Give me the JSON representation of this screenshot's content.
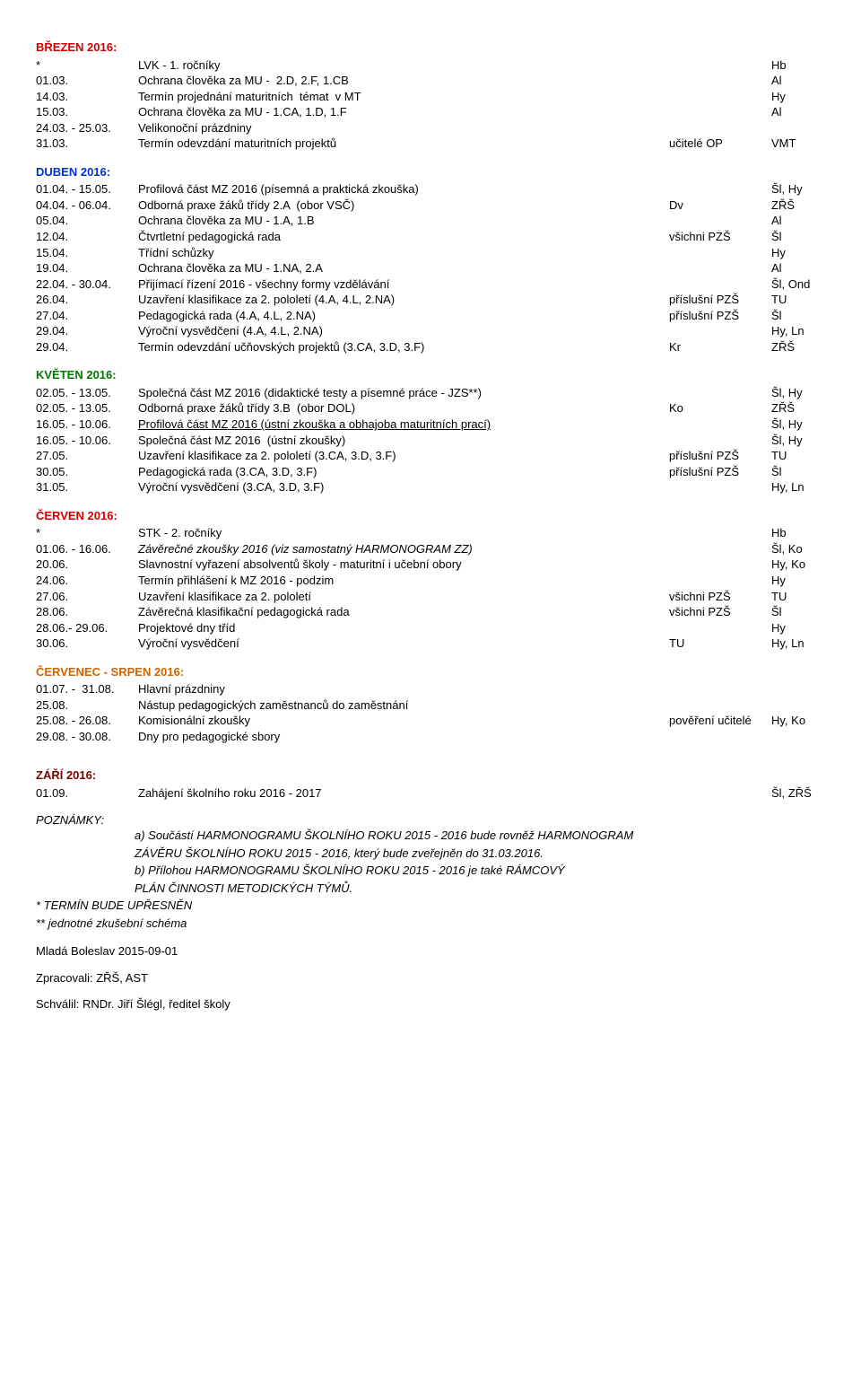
{
  "sections": [
    {
      "title": "BŘEZEN 2016:",
      "colorClass": "c-red",
      "rows": [
        {
          "date": "*",
          "text": "LVK - 1. ročníky",
          "c3": "",
          "c4": "Hb"
        },
        {
          "date": "01.03.",
          "text": "Ochrana člověka za MU -  2.D, 2.F, 1.CB",
          "c3": "",
          "c4": "Al"
        },
        {
          "date": "14.03.",
          "text": "Termín projednání maturitních  témat  v MT",
          "c3": "",
          "c4": "Hy"
        },
        {
          "date": "15.03.",
          "text": "Ochrana člověka za MU - 1.CA, 1.D, 1.F",
          "c3": "",
          "c4": "Al"
        },
        {
          "date": "24.03. - 25.03.",
          "text": "Velikonoční prázdniny",
          "c3": "",
          "c4": ""
        },
        {
          "date": "31.03.",
          "text": "Termín odevzdání maturitních projektů",
          "c3": "učitelé OP",
          "c4": "VMT"
        }
      ]
    },
    {
      "title": "DUBEN 2016:",
      "colorClass": "c-blue",
      "rows": [
        {
          "date": "01.04. - 15.05.",
          "text": "Profilová část MZ 2016 (písemná a praktická zkouška)",
          "c3": "",
          "c4": "Šl, Hy"
        },
        {
          "date": "04.04. - 06.04.",
          "text": "Odborná praxe žáků třídy 2.A  (obor VSČ)",
          "c3": "Dv",
          "c4": "ZŘŠ"
        },
        {
          "date": "05.04.",
          "text": "Ochrana člověka za MU - 1.A, 1.B",
          "c3": "",
          "c4": "Al"
        },
        {
          "date": "12.04.",
          "text": "Čtvrtletní pedagogická rada",
          "c3": "všichni PZŠ",
          "c4": "Šl"
        },
        {
          "date": "15.04.",
          "text": "Třídní schůzky",
          "c3": "",
          "c4": "Hy"
        },
        {
          "date": "19.04.",
          "text": "Ochrana člověka za MU - 1.NA, 2.A",
          "c3": "",
          "c4": "Al"
        },
        {
          "date": "22.04. - 30.04.",
          "text": "Přijímací řízení 2016 - všechny formy vzdělávání",
          "c3": "",
          "c4": "Šl, Ond"
        },
        {
          "date": "26.04.",
          "text": "Uzavření klasifikace za 2. pololetí (4.A, 4.L, 2.NA)",
          "c3": "příslušní PZŠ",
          "c4": "TU"
        },
        {
          "date": "27.04.",
          "text": "Pedagogická rada (4.A, 4.L, 2.NA)",
          "c3": "příslušní PZŠ",
          "c4": "Šl"
        },
        {
          "date": "29.04.",
          "text": "Výroční vysvědčení (4.A, 4.L, 2.NA)",
          "c3": "",
          "c4": "Hy, Ln"
        },
        {
          "date": "29.04.",
          "text": "Termín odevzdání učňovských projektů (3.CA, 3.D, 3.F)",
          "c3": "Kr",
          "c4": "ZŘŠ"
        }
      ]
    },
    {
      "title": "KVĚTEN 2016:",
      "colorClass": "c-green",
      "rows": [
        {
          "date": "02.05. - 13.05.",
          "text": "Společná část MZ 2016 (didaktické testy a písemné práce - JZS**)",
          "c3": "",
          "c4": "Šl, Hy"
        },
        {
          "date": "02.05. - 13.05.",
          "text": "Odborná praxe žáků třídy 3.B  (obor DOL)",
          "c3": "Ko",
          "c4": "ZŘŠ"
        },
        {
          "date": "16.05. - 10.06.",
          "text": "Profilová část MZ 2016 (ústní zkouška a obhajoba maturitních prací)",
          "c3": "",
          "c4": "Šl, Hy",
          "underline": true
        },
        {
          "date": "16.05. - 10.06.",
          "text": "Společná část MZ 2016  (ústní zkoušky)",
          "c3": "",
          "c4": "Šl, Hy"
        },
        {
          "date": "27.05.",
          "text": "Uzavření klasifikace za 2. pololetí (3.CA, 3.D, 3.F)",
          "c3": "příslušní PZŠ",
          "c4": "TU"
        },
        {
          "date": "30.05.",
          "text": "Pedagogická rada (3.CA, 3.D, 3.F)",
          "c3": "příslušní PZŠ",
          "c4": "Šl"
        },
        {
          "date": "31.05.",
          "text": "Výroční vysvědčení (3.CA, 3.D, 3.F)",
          "c3": "",
          "c4": "Hy, Ln"
        }
      ]
    },
    {
      "title": "ČERVEN 2016:",
      "colorClass": "c-red",
      "rows": [
        {
          "date": "*",
          "text": "STK - 2. ročníky",
          "c3": "",
          "c4": "Hb"
        },
        {
          "date": "01.06. - 16.06.",
          "text": "Závěrečné zkoušky 2016 (viz samostatný HARMONOGRAM ZZ)",
          "c3": "",
          "c4": "Šl, Ko",
          "italic": true
        },
        {
          "date": "20.06.",
          "text": "Slavnostní vyřazení absolventů školy - maturitní i učební obory",
          "c3": "",
          "c4": "Hy, Ko"
        },
        {
          "date": "24.06.",
          "text": "Termín přihlášení k MZ 2016 - podzim",
          "c3": "",
          "c4": "Hy"
        },
        {
          "date": "27.06.",
          "text": "Uzavření klasifikace za 2. pololetí",
          "c3": "všichni PZŠ",
          "c4": "TU"
        },
        {
          "date": "28.06.",
          "text": "Závěrečná klasifikační pedagogická rada",
          "c3": "všichni PZŠ",
          "c4": "Šl"
        },
        {
          "date": "28.06.- 29.06.",
          "text": "Projektové dny tříd",
          "c3": "",
          "c4": "Hy"
        },
        {
          "date": "30.06.",
          "text": "Výroční vysvědčení",
          "c3": "TU",
          "c4": "Hy, Ln"
        }
      ]
    },
    {
      "title": "ČERVENEC - SRPEN 2016:",
      "colorClass": "c-orange",
      "rows": [
        {
          "date": "01.07. -  31.08.",
          "text": "Hlavní prázdniny",
          "c3": "",
          "c4": ""
        },
        {
          "date": "25.08.",
          "text": "Nástup pedagogických zaměstnanců do zaměstnání",
          "c3": "",
          "c4": ""
        },
        {
          "date": "25.08. - 26.08.",
          "text": "Komisionální zkoušky",
          "c3": "pověření učitelé",
          "c4": "Hy, Ko"
        },
        {
          "date": "29.08. - 30.08.",
          "text": "Dny pro pedagogické sbory",
          "c3": "",
          "c4": ""
        }
      ]
    },
    {
      "title": "ZÁŘÍ 2016:",
      "colorClass": "c-maroon",
      "spacerBefore": true,
      "rows": [
        {
          "date": "01.09.",
          "text": "Zahájení školního roku 2016 - 2017",
          "c3": "",
          "c4": "Šl, ZŘŠ"
        }
      ]
    }
  ],
  "notes": {
    "heading": "POZNÁMKY:",
    "a": "a)  Součástí HARMONOGRAMU ŠKOLNÍHO ROKU 2015 - 2016 bude rovněž HARMONOGRAM",
    "a2": "     ZÁVĚRU ŠKOLNÍHO ROKU 2015 - 2016, který bude zveřejněn do 31.03.2016.",
    "b": "b)  Přílohou HARMONOGRAMU ŠKOLNÍHO ROKU 2015 - 2016 je také RÁMCOVÝ",
    "b2": "     PLÁN ČINNOSTI METODICKÝCH TÝMŮ.",
    "star": "*   TERMÍN BUDE UPŘESNĚN",
    "dstar": "** jednotné zkušební schéma"
  },
  "footer": {
    "place": "Mladá Boleslav 2015-09-01",
    "zprac": "Zpracovali: ZŘŠ, AST",
    "schvalil": "Schválil:  RNDr. Jiří Šlégl, ředitel školy"
  }
}
